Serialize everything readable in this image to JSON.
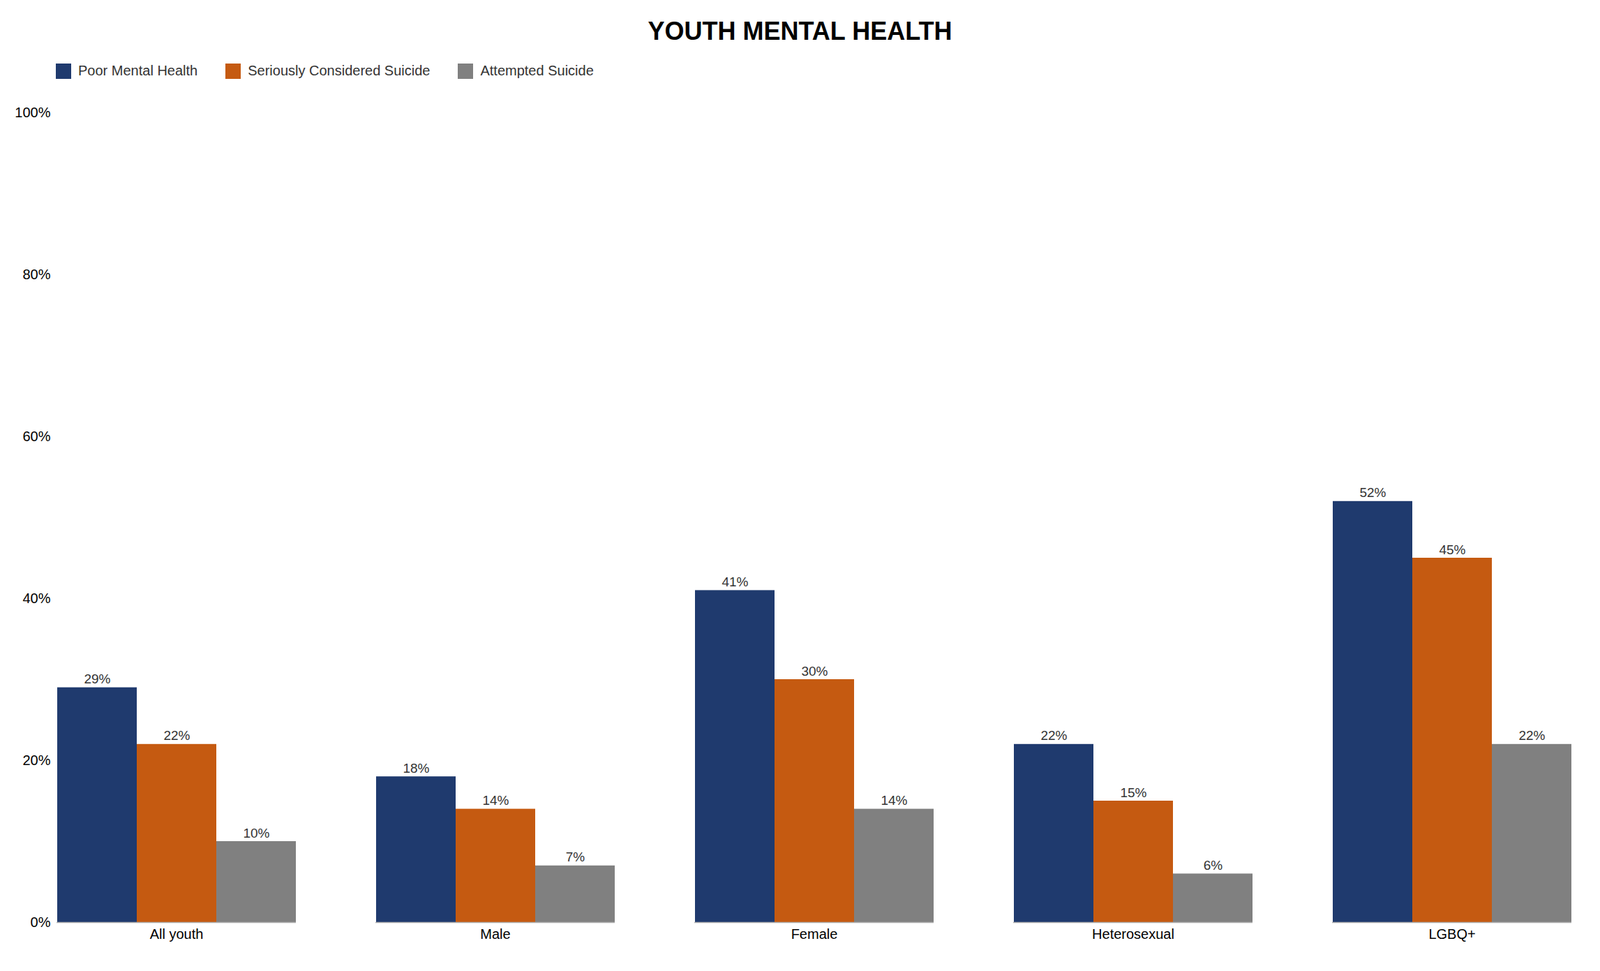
{
  "chart_data": {
    "type": "bar",
    "title": "YOUTH MENTAL HEALTH",
    "categories": [
      "All youth",
      "Male",
      "Female",
      "Heterosexual",
      "LGBQ+"
    ],
    "series": [
      {
        "name": "Poor Mental Health",
        "color": "#1f3a6e",
        "values": [
          29,
          18,
          41,
          22,
          52
        ],
        "value_labels": [
          "29%",
          "18%",
          "41%",
          "22%",
          "52%"
        ]
      },
      {
        "name": "Seriously Considered Suicide",
        "color": "#c55a11",
        "values": [
          22,
          14,
          30,
          15,
          45
        ],
        "value_labels": [
          "22%",
          "14%",
          "30%",
          "15%",
          "45%"
        ]
      },
      {
        "name": "Attempted Suicide",
        "color": "#808080",
        "values": [
          10,
          7,
          14,
          6,
          22
        ],
        "value_labels": [
          "10%",
          "7%",
          "14%",
          "6%",
          "22%"
        ]
      }
    ],
    "ylim": [
      0,
      100
    ],
    "yticks": [
      {
        "value": 0,
        "label": "0%"
      },
      {
        "value": 20,
        "label": "20%"
      },
      {
        "value": 40,
        "label": "40%"
      },
      {
        "value": 60,
        "label": "60%"
      },
      {
        "value": 80,
        "label": "80%"
      },
      {
        "value": 100,
        "label": "100%"
      }
    ],
    "grid": false,
    "legend": "upper left",
    "data_labels": true
  }
}
